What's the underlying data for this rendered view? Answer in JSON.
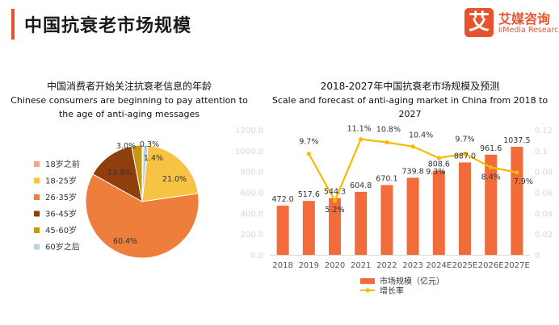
{
  "header": {
    "title": "中国抗衰老市场规模",
    "logo_mark": "艾",
    "logo_cn": "艾媒咨询",
    "logo_en": "iiMedia Research"
  },
  "colors": {
    "accent": "#e8532f",
    "bar": "#f26c3b",
    "line": "#f5bb00"
  },
  "chart_data": [
    {
      "type": "pie",
      "title": "中国消费者开始关注抗衰老信息的年龄",
      "subtitle": "Chinese consumers are beginning to pay attention to the age of anti-aging messages",
      "subtitle_lines": [
        "Chinese consumers are beginning to pay attention to",
        "the age of anti-aging messages"
      ],
      "legend_position": "left",
      "slices": [
        {
          "label": "18岁之前",
          "value": 0.3,
          "value_label": "0.3%",
          "color": "#f4a88a"
        },
        {
          "label": "18-25岁",
          "value": 21.0,
          "value_label": "21.0%",
          "color": "#f7c343"
        },
        {
          "label": "26-35岁",
          "value": 60.4,
          "value_label": "60.4%",
          "color": "#ee7e3b"
        },
        {
          "label": "36-45岁",
          "value": 13.9,
          "value_label": "13.9%",
          "color": "#8e3f0d"
        },
        {
          "label": "45-60岁",
          "value": 3.0,
          "value_label": "3.0%",
          "color": "#c69813"
        },
        {
          "label": "60岁之后",
          "value": 1.4,
          "value_label": "1.4%",
          "color": "#bcd0e4"
        }
      ]
    },
    {
      "type": "bar",
      "title": "2018-2027年中国抗衰老市场规模及预测",
      "subtitle": "Scale and forecast of anti-aging market in China from 2018 to 2027",
      "categories": [
        "2018",
        "2019",
        "2020",
        "2021",
        "2022",
        "2023",
        "2024E",
        "2025E",
        "2026E",
        "2027E"
      ],
      "series": [
        {
          "name": "市场规模（亿元）",
          "type": "bar",
          "values": [
            472.0,
            517.6,
            544.3,
            604.8,
            670.1,
            739.8,
            808.6,
            887.0,
            961.6,
            1037.5
          ],
          "labels": [
            "472.0",
            "517.6",
            "544.3",
            "604.8",
            "670.1",
            "739.8",
            "808.6",
            "887.0",
            "961.6",
            "1037.5"
          ]
        },
        {
          "name": "增长率",
          "type": "line",
          "values": [
            null,
            9.7,
            5.2,
            11.1,
            10.8,
            10.4,
            9.3,
            9.7,
            8.4,
            7.9
          ],
          "labels": [
            "",
            "9.7%",
            "5.2%",
            "11.1%",
            "10.8%",
            "10.4%",
            "9.3%",
            "9.7%",
            "8.4%",
            "7.9%"
          ]
        }
      ],
      "ylim_left": [
        0,
        1200
      ],
      "yticks_left": [
        "0.0",
        "200.0",
        "400.0",
        "600.0",
        "800.0",
        "1000.0",
        "1200.0"
      ],
      "ylim_right": [
        0,
        0.12
      ],
      "yticks_right": [
        "0",
        "0.02",
        "0.04",
        "0.06",
        "0.08",
        "0.1",
        "0.12"
      ],
      "legend_position": "bottom",
      "grid": false
    }
  ]
}
